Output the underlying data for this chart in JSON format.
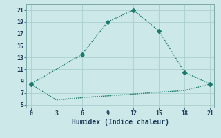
{
  "xlabel": "Humidex (Indice chaleur)",
  "line1_x": [
    0,
    6,
    9,
    12,
    15,
    18,
    21
  ],
  "line1_y": [
    8.5,
    13.5,
    19,
    21,
    17.5,
    10.5,
    8.5
  ],
  "line2_x": [
    0,
    3,
    6,
    9,
    12,
    15,
    18,
    21
  ],
  "line2_y": [
    8.5,
    5.8,
    6.2,
    6.5,
    6.8,
    7.1,
    7.4,
    8.5
  ],
  "line_color": "#1a7a6e",
  "bg_color": "#cce8e8",
  "grid_color": "#aacece",
  "xticks": [
    0,
    3,
    6,
    9,
    12,
    15,
    18,
    21
  ],
  "yticks": [
    5,
    7,
    9,
    11,
    13,
    15,
    17,
    19,
    21
  ],
  "xlim": [
    -0.5,
    21.5
  ],
  "ylim": [
    4.5,
    22
  ],
  "marker": "D",
  "marker_size": 3,
  "linewidth": 1.0,
  "tick_fontsize": 6,
  "xlabel_fontsize": 7
}
